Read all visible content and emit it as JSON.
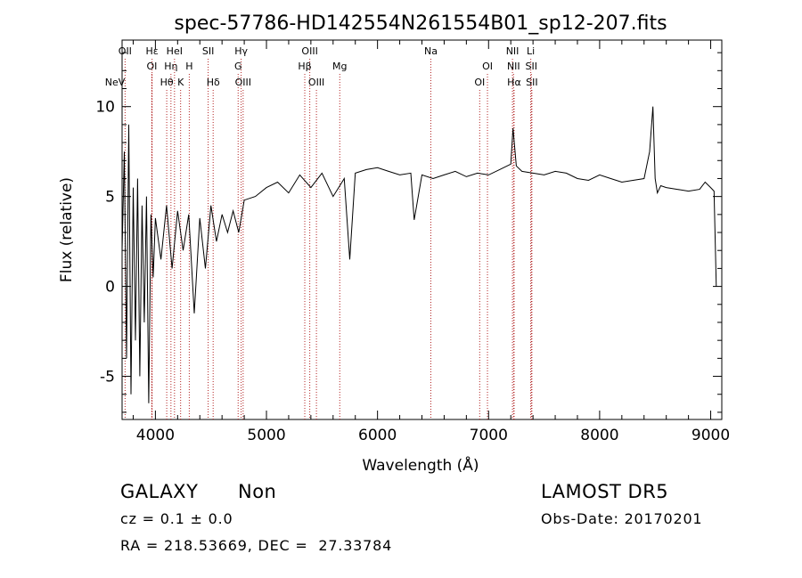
{
  "chart_data": {
    "type": "line",
    "title": "spec-57786-HD142554N261554B01_sp12-207.fits",
    "xlabel": "Wavelength (Å)",
    "ylabel": "Flux (relative)",
    "xlim": [
      3700,
      9100
    ],
    "ylim": [
      -7.4,
      13.7
    ],
    "x_ticks": [
      "4000",
      "5000",
      "6000",
      "7000",
      "8000",
      "9000"
    ],
    "x_tick_values": [
      4000,
      5000,
      6000,
      7000,
      8000,
      9000
    ],
    "y_ticks": [
      "10",
      "5",
      "0",
      "-5"
    ],
    "y_tick_values": [
      10,
      5,
      0,
      -5
    ],
    "grid": false,
    "line_color": "#000000",
    "marker_color": "#b22222",
    "series": [
      {
        "x": [
          3700,
          3720,
          3740,
          3760,
          3780,
          3800,
          3820,
          3840,
          3860,
          3880,
          3900,
          3920,
          3940,
          3960,
          3980,
          4000,
          4050,
          4100,
          4150,
          4200,
          4250,
          4300,
          4350,
          4400,
          4450,
          4500,
          4550,
          4600,
          4650,
          4700,
          4750,
          4800,
          4900,
          5000,
          5100,
          5200,
          5300,
          5400,
          5500,
          5600,
          5700,
          5750,
          5800,
          5900,
          6000,
          6100,
          6200,
          6300,
          6330,
          6400,
          6500,
          6600,
          6700,
          6800,
          6900,
          7000,
          7100,
          7200,
          7220,
          7250,
          7300,
          7400,
          7500,
          7600,
          7700,
          7800,
          7900,
          8000,
          8100,
          8200,
          8300,
          8400,
          8450,
          8480,
          8500,
          8520,
          8550,
          8600,
          8700,
          8800,
          8900,
          8950,
          9000,
          9030,
          9050
        ],
        "y": [
          2.0,
          7.5,
          -4.0,
          9.0,
          -6.0,
          5.5,
          -3.0,
          6.0,
          -5.0,
          4.5,
          -2.0,
          5.0,
          -6.5,
          4.0,
          0.5,
          3.8,
          1.5,
          4.5,
          1.0,
          4.2,
          2.0,
          4.0,
          -1.5,
          3.8,
          1.0,
          4.5,
          2.5,
          4.0,
          3.0,
          4.2,
          3.0,
          4.8,
          5.0,
          5.5,
          5.8,
          5.2,
          6.2,
          5.5,
          6.3,
          5.0,
          6.0,
          1.5,
          6.3,
          6.5,
          6.6,
          6.4,
          6.2,
          6.3,
          3.7,
          6.2,
          6.0,
          6.2,
          6.4,
          6.1,
          6.3,
          6.2,
          6.5,
          6.8,
          8.8,
          6.7,
          6.4,
          6.3,
          6.2,
          6.4,
          6.3,
          6.0,
          5.9,
          6.2,
          6.0,
          5.8,
          5.9,
          6.0,
          7.5,
          10.0,
          6.0,
          5.2,
          5.6,
          5.5,
          5.4,
          5.3,
          5.4,
          5.8,
          5.5,
          5.3,
          0.0
        ]
      }
    ],
    "line_markers": [
      {
        "label": "NeV",
        "x": 3426,
        "row": 2
      },
      {
        "label": "OII",
        "x": 3727,
        "row": 0
      },
      {
        "label": "OI",
        "x": 3968,
        "row": 1
      },
      {
        "label": "Hε",
        "x": 3970,
        "row": 0
      },
      {
        "label": "Hθ",
        "x": 4102,
        "row": 2
      },
      {
        "label": "Hη",
        "x": 4140,
        "row": 1
      },
      {
        "label": "HeI",
        "x": 4172,
        "row": 0
      },
      {
        "label": "H",
        "x": 4305,
        "row": 1
      },
      {
        "label": "K",
        "x": 4227,
        "row": 2
      },
      {
        "label": "SII",
        "x": 4475,
        "row": 0
      },
      {
        "label": "Hδ",
        "x": 4520,
        "row": 2
      },
      {
        "label": "Hγ",
        "x": 4772,
        "row": 0
      },
      {
        "label": "G",
        "x": 4745,
        "row": 1
      },
      {
        "label": "OIII",
        "x": 4790,
        "row": 2
      },
      {
        "label": "OIII",
        "x": 5390,
        "row": 0
      },
      {
        "label": "Hβ",
        "x": 5345,
        "row": 1
      },
      {
        "label": "OIII",
        "x": 5450,
        "row": 2
      },
      {
        "label": "Mg",
        "x": 5660,
        "row": 1
      },
      {
        "label": "Na",
        "x": 6480,
        "row": 0
      },
      {
        "label": "OI",
        "x": 6990,
        "row": 1
      },
      {
        "label": "OI",
        "x": 6920,
        "row": 2
      },
      {
        "label": "NII",
        "x": 7215,
        "row": 0
      },
      {
        "label": "NII",
        "x": 7225,
        "row": 1
      },
      {
        "label": "Hα",
        "x": 7230,
        "row": 2
      },
      {
        "label": "Li",
        "x": 7380,
        "row": 0
      },
      {
        "label": "SII",
        "x": 7385,
        "row": 1
      },
      {
        "label": "SII",
        "x": 7390,
        "row": 2
      }
    ]
  },
  "info": {
    "class_label": "GALAXY",
    "subclass_label": "Non",
    "survey_label": "LAMOST DR5",
    "cz_text": "cz = 0.1 ± 0.0",
    "obs_date_text": "Obs-Date: 20170201",
    "coords_text": "RA = 218.53669, DEC =  27.33784"
  }
}
